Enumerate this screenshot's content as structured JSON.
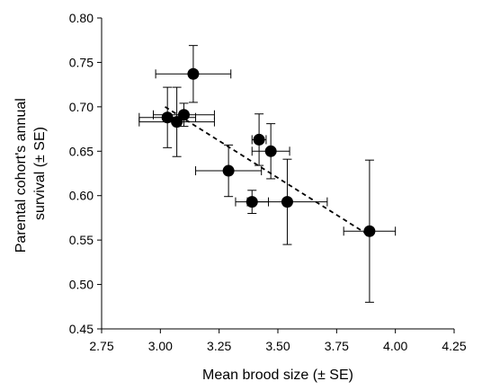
{
  "chart_data": {
    "type": "scatter",
    "title": "",
    "xlabel": "Mean brood size (± SE)",
    "ylabel_lines": [
      "Parental cohort's annual",
      "survival (± SE)"
    ],
    "xlim": [
      2.75,
      4.25
    ],
    "ylim": [
      0.45,
      0.8
    ],
    "xticks": [
      2.75,
      3.0,
      3.25,
      3.5,
      3.75,
      4.0,
      4.25
    ],
    "yticks": [
      0.45,
      0.5,
      0.55,
      0.6,
      0.65,
      0.7,
      0.75,
      0.8
    ],
    "xtick_labels": [
      "2.75",
      "3.00",
      "3.25",
      "3.50",
      "3.75",
      "4.00",
      "4.25"
    ],
    "ytick_labels": [
      "0.45",
      "0.50",
      "0.55",
      "0.60",
      "0.65",
      "0.70",
      "0.75",
      "0.80"
    ],
    "grid": false,
    "marker_color": "#000000",
    "points": [
      {
        "x": 3.14,
        "y": 0.737,
        "xerr": 0.16,
        "yerr": 0.032
      },
      {
        "x": 3.03,
        "y": 0.688,
        "xerr": 0.12,
        "yerr": 0.034
      },
      {
        "x": 3.07,
        "y": 0.683,
        "xerr": 0.16,
        "yerr": 0.039
      },
      {
        "x": 3.1,
        "y": 0.691,
        "xerr": 0.13,
        "yerr": 0.013
      },
      {
        "x": 3.42,
        "y": 0.663,
        "xerr": 0.03,
        "yerr": 0.029
      },
      {
        "x": 3.47,
        "y": 0.65,
        "xerr": 0.08,
        "yerr": 0.031
      },
      {
        "x": 3.29,
        "y": 0.628,
        "xerr": 0.14,
        "yerr": 0.029
      },
      {
        "x": 3.39,
        "y": 0.593,
        "xerr": 0.07,
        "yerr": 0.013
      },
      {
        "x": 3.54,
        "y": 0.593,
        "xerr": 0.17,
        "yerr": 0.048
      },
      {
        "x": 3.89,
        "y": 0.56,
        "xerr": 0.11,
        "yerr": 0.08
      }
    ],
    "trendline": {
      "x": [
        3.02,
        3.89
      ],
      "y": [
        0.7,
        0.555
      ],
      "style": "dashed"
    }
  }
}
